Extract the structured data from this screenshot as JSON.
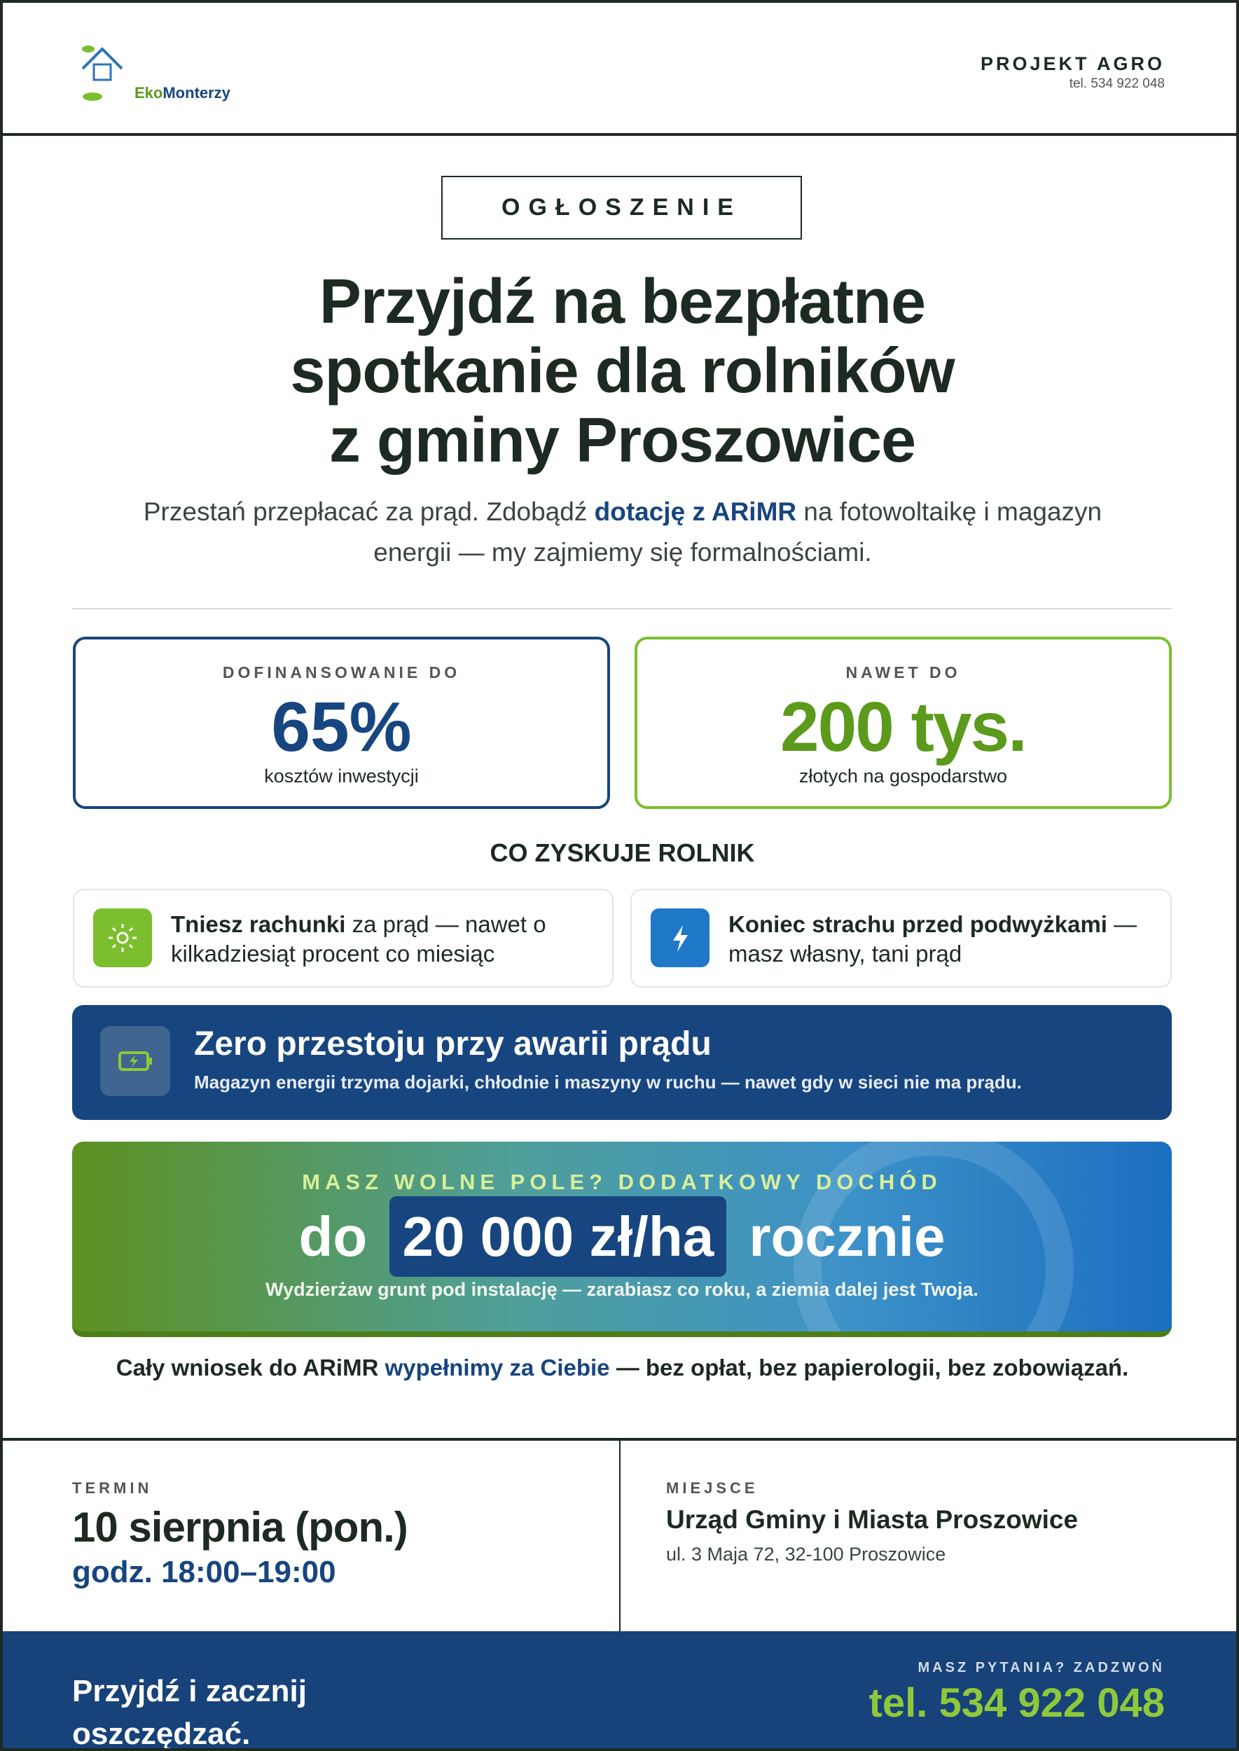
{
  "header": {
    "logo": {
      "part1": "Eko",
      "part2": "Monterzy"
    },
    "company": "PROJEKT AGRO",
    "phone": "tel. 534 922 048"
  },
  "announcement": {
    "label": "OGŁOSZENIE",
    "title_lines": [
      "Przyjdź na bezpłatne",
      "spotkanie dla rolników",
      "z gminy Proszowice"
    ],
    "lead": [
      "Przestań przepłacać za prąd. Zdobądź ",
      "dotację z ARiMR",
      " na fotowoltaikę i magazyn energii — my zajmiemy się formalnościami."
    ]
  },
  "stats": [
    {
      "label": "DOFINANSOWANIE DO",
      "value": "65%",
      "caption": "kosztów inwestycji"
    },
    {
      "label": "NAWET DO",
      "value": "200 tys.",
      "caption": "złotych na gospodarstwo"
    }
  ],
  "benefits_title": "CO ZYSKUJE ROLNIK",
  "benefits": [
    {
      "bold": "Tniesz rachunki",
      "text": " za prąd — nawet o kilkadziesiąt procent co miesiąc"
    },
    {
      "bold": "Koniec strachu przed podwyżkami",
      "text": " — masz własny, tani prąd"
    }
  ],
  "highlight": {
    "title": "Zero przestoju przy awarii prądu",
    "text": "Magazyn energii trzyma dojarki, chłodnie i maszyny w ruchu — nawet gdy w sieci nie ma prądu."
  },
  "lease": {
    "label": "MASZ WOLNE POLE? DODATKOWY DOCHÓD",
    "pre": "do",
    "amount": "20 000 zł/ha",
    "post": "rocznie",
    "text": "Wydzierżaw grunt pod instalację — zarabiasz co roku, a ziemia dalej jest Twoja."
  },
  "note": [
    "Cały wniosek do ARiMR ",
    "wypełnimy za Ciebie",
    " — bez opłat, bez papierologii, bez zobowiązań."
  ],
  "event": {
    "date_label": "TERMIN",
    "date": "10 sierpnia (pon.)",
    "time": "godz. 18:00–19:00",
    "place_label": "MIEJSCE",
    "place": "Urząd Gminy i Miasta Proszowice",
    "address": "ul. 3 Maja 72, 32-100 Proszowice"
  },
  "footer": {
    "slogan_lines": [
      "Przyjdź i zacznij",
      "oszczędzać."
    ],
    "contact_label": "MASZ PYTANIA? ZADZWOŃ",
    "phone": "tel. 534 922 048"
  }
}
